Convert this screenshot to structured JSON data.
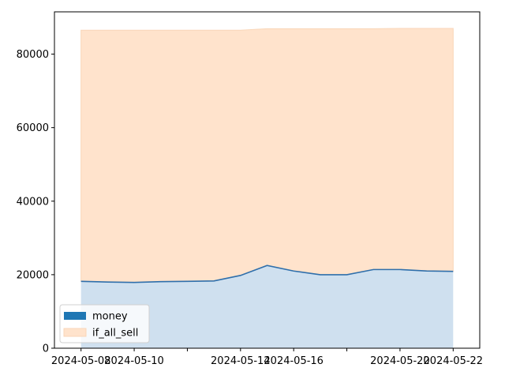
{
  "chart_data": {
    "type": "area",
    "x": [
      "2024-05-08",
      "2024-05-09",
      "2024-05-10",
      "2024-05-11",
      "2024-05-12",
      "2024-05-13",
      "2024-05-14",
      "2024-05-15",
      "2024-05-16",
      "2024-05-17",
      "2024-05-18",
      "2024-05-19",
      "2024-05-20",
      "2024-05-21",
      "2024-05-22"
    ],
    "series": [
      {
        "name": "money",
        "values": [
          18200,
          18000,
          17900,
          18100,
          18200,
          18300,
          19800,
          22500,
          21000,
          20000,
          20000,
          21400,
          21400,
          21000,
          20900
        ],
        "line_color": "#2f6fab",
        "fill_color": "#cfe0ef"
      },
      {
        "name": "if_all_sell",
        "values": [
          86500,
          86500,
          86500,
          86500,
          86500,
          86500,
          86500,
          86900,
          86900,
          86900,
          86900,
          86900,
          87000,
          87000,
          87000
        ],
        "fill_color": "#ffe3cc",
        "line_color": "#f9d6b8"
      }
    ],
    "x_ticks": [
      "2024-05-08",
      "2024-05-10",
      "2024-05-12",
      "2024-05-14",
      "2024-05-16",
      "2024-05-18",
      "2024-05-20",
      "2024-05-22"
    ],
    "x_tick_labels": [
      "2024-05-08",
      "2024-05-10",
      "2024-05-14",
      "2024-05-16",
      "2024-05-20",
      "2024-05-22"
    ],
    "y_ticks": [
      0,
      20000,
      40000,
      60000,
      80000
    ],
    "ylim": [
      0,
      91500
    ],
    "xlim": [
      "2024-05-07",
      "2024-05-23"
    ],
    "legend": {
      "placement": "bottom-left",
      "entries": [
        {
          "label": "money",
          "color": "#1f77b4"
        },
        {
          "label": "if_all_sell",
          "color": "#ffe3cc"
        }
      ]
    },
    "grid": false,
    "title": "",
    "xlabel": "",
    "ylabel": ""
  }
}
